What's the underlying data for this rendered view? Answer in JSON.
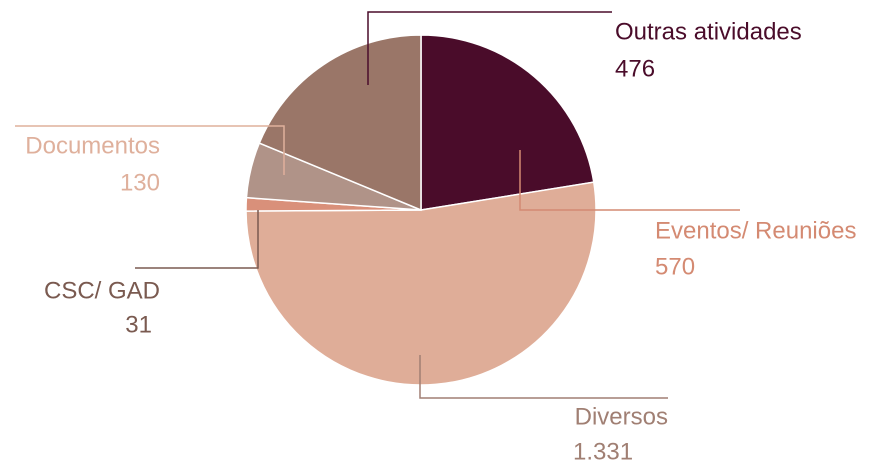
{
  "chart_data": {
    "type": "pie",
    "categories": [
      "Eventos/ Reuniões",
      "Diversos",
      "CSC/ GAD",
      "Documentos",
      "Outras atividades"
    ],
    "values": [
      570,
      1331,
      31,
      130,
      476
    ],
    "value_labels": [
      "570",
      "1.331",
      "31",
      "130",
      "476"
    ],
    "colors": [
      "#4a0c2a",
      "#dfad98",
      "#d9907a",
      "#b09388",
      "#9a7668"
    ],
    "label_colors": [
      "#d48a72",
      "#a07f73",
      "#7a5a50",
      "#dfb09c",
      "#4a0c2a"
    ],
    "start_angle": 0,
    "direction": "clockwise"
  }
}
